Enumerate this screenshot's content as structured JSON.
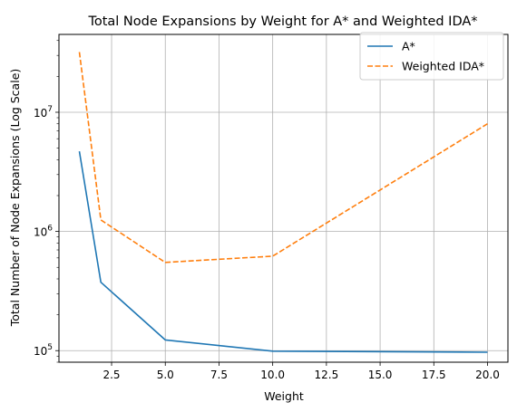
{
  "chart_data": {
    "type": "line",
    "title": "Total Node Expansions by Weight for A* and Weighted IDA*",
    "xlabel": "Weight",
    "ylabel": "Total Number of Node Expansions (Log Scale)",
    "yscale": "log",
    "xlim": [
      0.05,
      20.95
    ],
    "ylim": [
      80000,
      45000000
    ],
    "xticks": [
      2.5,
      5.0,
      7.5,
      10.0,
      12.5,
      15.0,
      17.5,
      20.0
    ],
    "xtick_labels": [
      "2.5",
      "5.0",
      "7.5",
      "10.0",
      "12.5",
      "15.0",
      "17.5",
      "20.0"
    ],
    "yticks": [
      100000,
      1000000,
      10000000
    ],
    "ytick_labels": [
      {
        "base": "10",
        "exp": "5"
      },
      {
        "base": "10",
        "exp": "6"
      },
      {
        "base": "10",
        "exp": "7"
      }
    ],
    "grid": true,
    "legend_position": "top-right",
    "series": [
      {
        "name": "A*",
        "color": "#1f77b4",
        "style": "solid",
        "x": [
          1,
          2,
          5,
          10,
          20
        ],
        "y": [
          4700000,
          375000,
          123000,
          99000,
          97000
        ]
      },
      {
        "name": "Weighted IDA*",
        "color": "#ff7f0e",
        "style": "dashed",
        "x": [
          1,
          2,
          5,
          10,
          20
        ],
        "y": [
          32000000,
          1250000,
          550000,
          620000,
          8000000
        ]
      }
    ]
  }
}
